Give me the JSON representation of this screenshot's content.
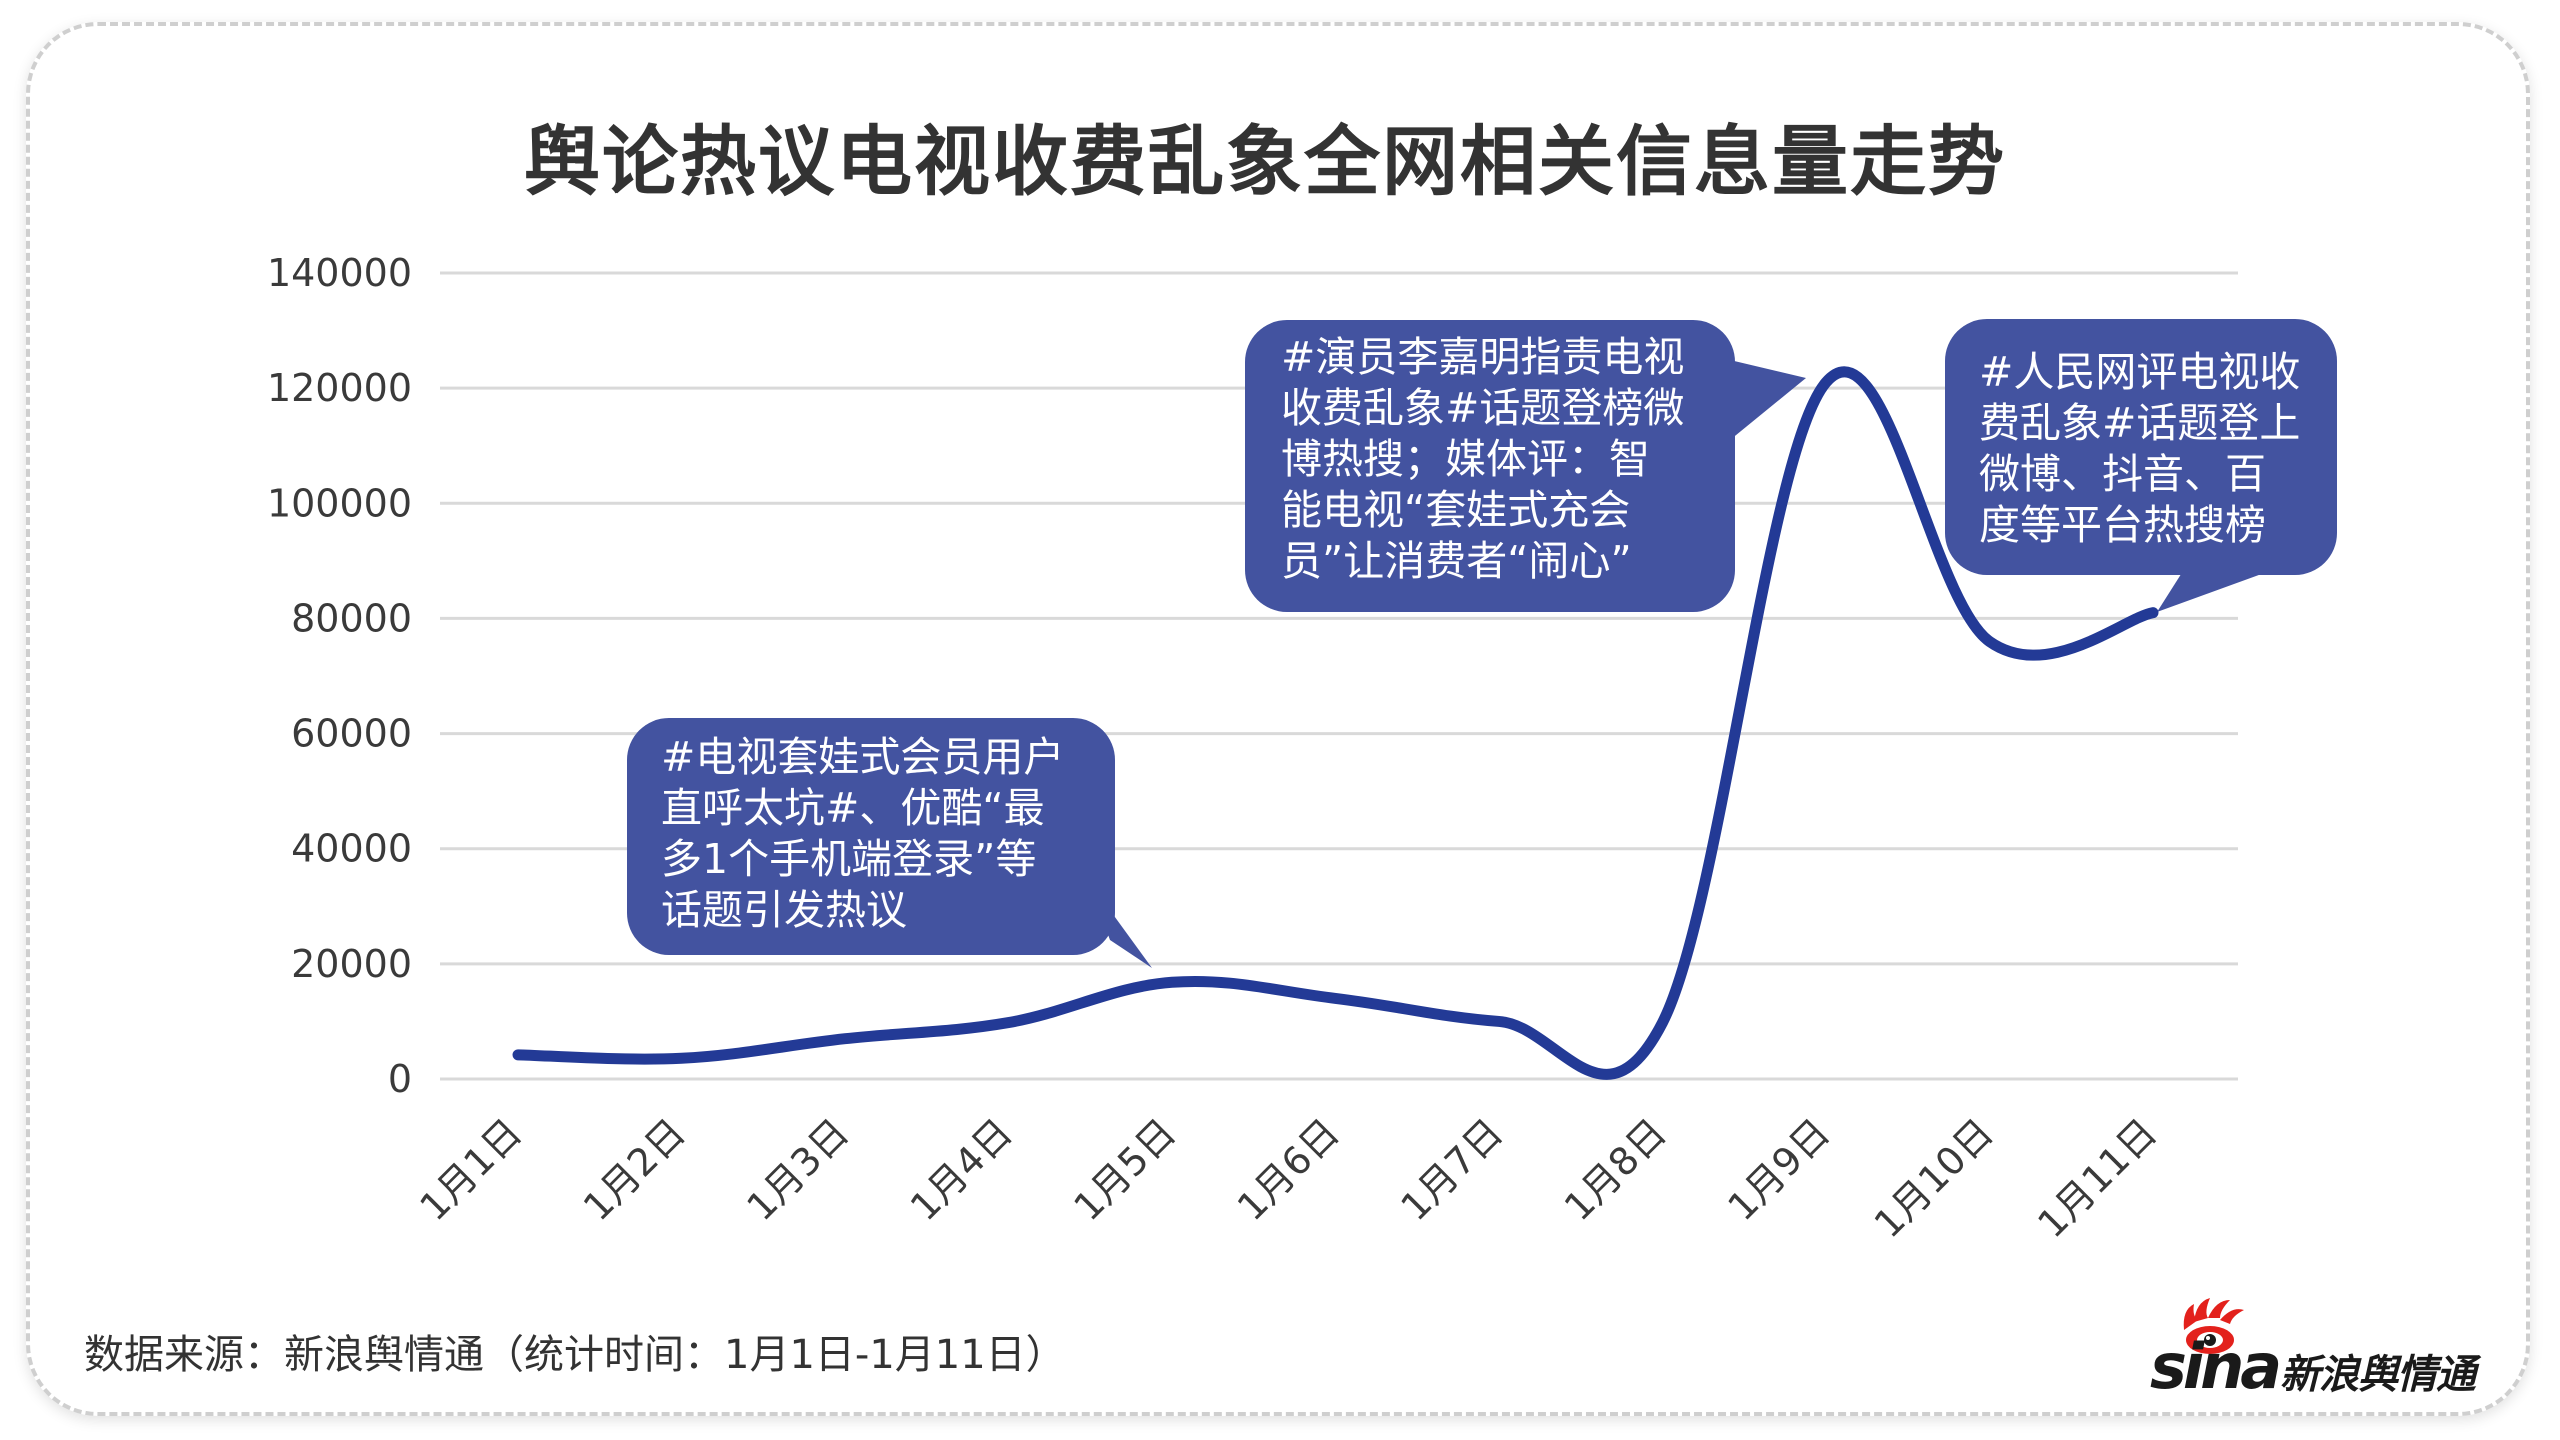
{
  "title": "舆论热议电视收费乱象全网相关信息量走势",
  "chart_data": {
    "type": "line",
    "title": "舆论热议电视收费乱象全网相关信息量走势",
    "xlabel": "",
    "ylabel": "",
    "categories": [
      "1月1日",
      "1月2日",
      "1月3日",
      "1月4日",
      "1月5日",
      "1月6日",
      "1月7日",
      "1月8日",
      "1月9日",
      "1月10日",
      "1月11日"
    ],
    "series": [
      {
        "name": "全网相关信息量",
        "color": "#233a96",
        "values": [
          4200,
          3600,
          7000,
          9800,
          16800,
          14000,
          10000,
          9800,
          121000,
          76000,
          81000
        ]
      }
    ],
    "yticks": [
      0,
      20000,
      40000,
      60000,
      80000,
      100000,
      120000,
      140000
    ],
    "ylim": [
      0,
      140000
    ],
    "grid": true,
    "legend": "none",
    "annotations": [
      {
        "target": "1月5日",
        "text": "#电视套娃式会员用户\n直呼太坑#、优酷“最\n多1个手机端登录”等\n话题引发热议"
      },
      {
        "target": "1月9日",
        "text": "#演员李嘉明指责电视\n收费乱象#话题登榜微\n博热搜；媒体评：智\n能电视“套娃式充会\n员”让消费者“闹心”"
      },
      {
        "target": "1月11日",
        "text": "#人民网评电视收\n费乱象#话题登上\n微博、抖音、百\n度等平台热搜榜"
      }
    ]
  },
  "colors": {
    "line": "#233a96",
    "bubble": "#4353a0",
    "grid": "#d9d9d9",
    "text": "#333333",
    "logo_red": "#e3211c"
  },
  "footer": {
    "source": "数据来源：新浪舆情通（统计时间：1月1日-1月11日）",
    "logo_sina": "sina",
    "logo_text": "新浪舆情通"
  }
}
